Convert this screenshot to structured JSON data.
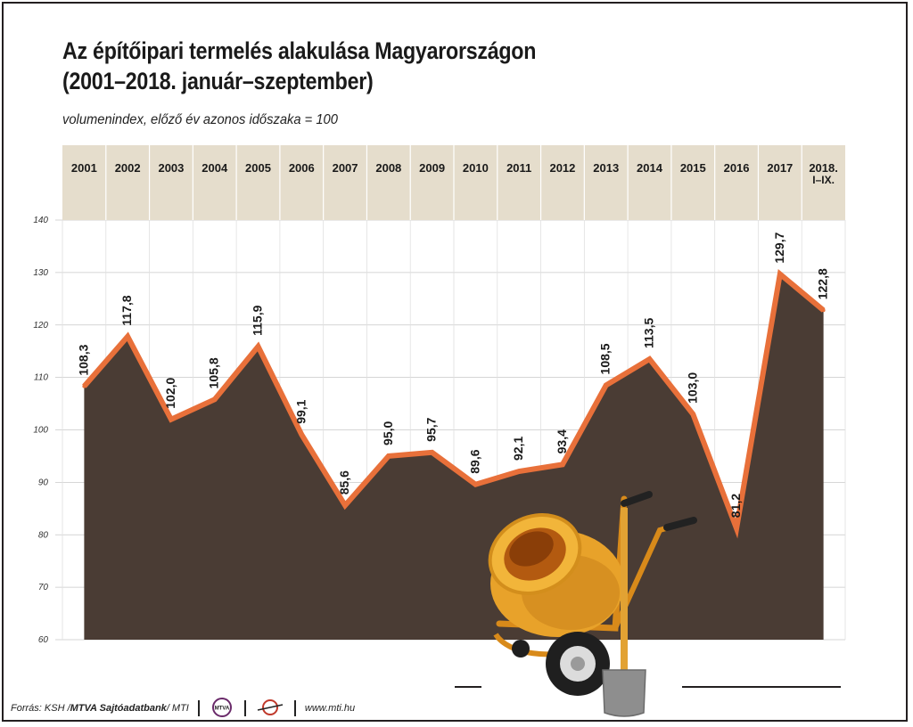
{
  "header": {
    "title_line1": "Az építőipari termelés alakulása Magyarországon",
    "title_line2": "(2001–2018. január–szeptember)",
    "subtitle": "volumenindex, előző év azonos időszaka = 100"
  },
  "chart_data": {
    "type": "area",
    "categories": [
      "2001",
      "2002",
      "2003",
      "2004",
      "2005",
      "2006",
      "2007",
      "2008",
      "2009",
      "2010",
      "2011",
      "2012",
      "2013",
      "2014",
      "2015",
      "2016",
      "2017",
      "2018."
    ],
    "category_sublabels": [
      "",
      "",
      "",
      "",
      "",
      "",
      "",
      "",
      "",
      "",
      "",
      "",
      "",
      "",
      "",
      "",
      "",
      "I–IX."
    ],
    "values": [
      108.3,
      117.8,
      102.0,
      105.8,
      115.9,
      99.1,
      85.6,
      95.0,
      95.7,
      89.6,
      92.1,
      93.4,
      108.5,
      113.5,
      103.0,
      81.2,
      129.7,
      122.8
    ],
    "value_labels": [
      "108,3",
      "117,8",
      "102,0",
      "105,8",
      "115,9",
      "99,1",
      "85,6",
      "95,0",
      "95,7",
      "89,6",
      "92,1",
      "93,4",
      "108,5",
      "113,5",
      "103,0",
      "81,2",
      "129,7",
      "122,8"
    ],
    "ylim": [
      60,
      140
    ],
    "yticks": [
      "60",
      "70",
      "80",
      "90",
      "100",
      "110",
      "120",
      "130",
      "140"
    ],
    "grid": true,
    "colors": {
      "area": "#4a3c34",
      "line": "#e8703a",
      "header_band": "#e5ddcc",
      "grid": "#c8c8c8"
    }
  },
  "footer": {
    "source_prefix": "Forrás: KSH / ",
    "source_bold": "MTVA Sajtóadatbank",
    "source_suffix": " / MTI",
    "logo1": "MTVA",
    "url": "www.mti.hu"
  },
  "icons": [
    "cement-mixer-icon",
    "shovel-icon",
    "mtva-logo",
    "mti-logo"
  ]
}
